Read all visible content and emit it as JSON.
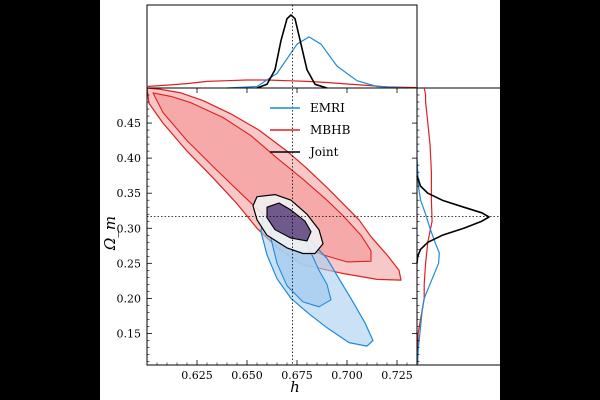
{
  "chart_data": {
    "type": "corner-contour",
    "xlabel": "h",
    "ylabel": "Ω_m",
    "xlim": [
      0.6,
      0.735
    ],
    "ylim": [
      0.105,
      0.5
    ],
    "xticks": [
      0.625,
      0.65,
      0.675,
      0.7,
      0.725
    ],
    "xtick_labels": [
      "0.625",
      "0.650",
      "0.675",
      "0.700",
      "0.725"
    ],
    "yticks": [
      0.15,
      0.2,
      0.25,
      0.3,
      0.35,
      0.4,
      0.45
    ],
    "ytick_labels": [
      "0.15",
      "0.20",
      "0.25",
      "0.30",
      "0.35",
      "0.40",
      "0.45"
    ],
    "truth": {
      "h": 0.6727,
      "Omega_m": 0.3166
    },
    "legend": {
      "position": "top-right",
      "entries": [
        {
          "name": "EMRI",
          "color": "#1f8ad6"
        },
        {
          "name": "MBHB",
          "color": "#e02020"
        },
        {
          "name": "Joint",
          "color": "#000000"
        }
      ]
    },
    "series": [
      {
        "name": "MBHB",
        "color": "#e02020",
        "fill": "#f4a3a3",
        "contours": [
          {
            "level": "2-sigma",
            "points": [
              [
                0.6,
                0.5
              ],
              [
                0.607,
                0.498
              ],
              [
                0.617,
                0.493
              ],
              [
                0.628,
                0.482
              ],
              [
                0.642,
                0.463
              ],
              [
                0.656,
                0.44
              ],
              [
                0.67,
                0.41
              ],
              [
                0.68,
                0.385
              ],
              [
                0.69,
                0.358
              ],
              [
                0.698,
                0.335
              ],
              [
                0.706,
                0.312
              ],
              [
                0.712,
                0.288
              ],
              [
                0.72,
                0.262
              ],
              [
                0.726,
                0.24
              ],
              [
                0.727,
                0.226
              ],
              [
                0.715,
                0.227
              ],
              [
                0.697,
                0.236
              ],
              [
                0.678,
                0.248
              ],
              [
                0.666,
                0.27
              ],
              [
                0.655,
                0.3
              ],
              [
                0.645,
                0.335
              ],
              [
                0.633,
                0.372
              ],
              [
                0.62,
                0.41
              ],
              [
                0.608,
                0.45
              ],
              [
                0.601,
                0.478
              ],
              [
                0.6,
                0.5
              ]
            ]
          },
          {
            "level": "1-sigma",
            "points": [
              [
                0.603,
                0.493
              ],
              [
                0.612,
                0.488
              ],
              [
                0.622,
                0.479
              ],
              [
                0.638,
                0.458
              ],
              [
                0.652,
                0.432
              ],
              [
                0.665,
                0.4
              ],
              [
                0.678,
                0.37
              ],
              [
                0.69,
                0.34
              ],
              [
                0.698,
                0.318
              ],
              [
                0.707,
                0.29
              ],
              [
                0.712,
                0.268
              ],
              [
                0.712,
                0.253
              ],
              [
                0.7,
                0.252
              ],
              [
                0.688,
                0.262
              ],
              [
                0.676,
                0.278
              ],
              [
                0.666,
                0.3
              ],
              [
                0.656,
                0.325
              ],
              [
                0.645,
                0.355
              ],
              [
                0.633,
                0.388
              ],
              [
                0.62,
                0.425
              ],
              [
                0.608,
                0.465
              ],
              [
                0.603,
                0.493
              ]
            ]
          }
        ],
        "marginal_x": [
          [
            0.6,
            0.02
          ],
          [
            0.61,
            0.04
          ],
          [
            0.62,
            0.06
          ],
          [
            0.63,
            0.09
          ],
          [
            0.64,
            0.1
          ],
          [
            0.65,
            0.11
          ],
          [
            0.66,
            0.11
          ],
          [
            0.67,
            0.1
          ],
          [
            0.68,
            0.09
          ],
          [
            0.69,
            0.075
          ],
          [
            0.7,
            0.055
          ],
          [
            0.71,
            0.035
          ],
          [
            0.72,
            0.015
          ],
          [
            0.735,
            0.005
          ]
        ],
        "marginal_y": [
          [
            0.105,
            0.008
          ],
          [
            0.15,
            0.015
          ],
          [
            0.2,
            0.1
          ],
          [
            0.22,
            0.1
          ],
          [
            0.25,
            0.12
          ],
          [
            0.28,
            0.15
          ],
          [
            0.31,
            0.21
          ],
          [
            0.34,
            0.2
          ],
          [
            0.38,
            0.2
          ],
          [
            0.42,
            0.18
          ],
          [
            0.46,
            0.14
          ],
          [
            0.48,
            0.12
          ],
          [
            0.49,
            0.12
          ],
          [
            0.5,
            0.1
          ]
        ]
      },
      {
        "name": "EMRI",
        "color": "#1f8ad6",
        "fill": "#a9cef0",
        "contours": [
          {
            "level": "2-sigma",
            "points": [
              [
                0.662,
                0.322
              ],
              [
                0.668,
                0.315
              ],
              [
                0.677,
                0.298
              ],
              [
                0.684,
                0.275
              ],
              [
                0.69,
                0.257
              ],
              [
                0.696,
                0.228
              ],
              [
                0.703,
                0.195
              ],
              [
                0.709,
                0.165
              ],
              [
                0.713,
                0.14
              ],
              [
                0.71,
                0.132
              ],
              [
                0.701,
                0.137
              ],
              [
                0.69,
                0.158
              ],
              [
                0.681,
                0.178
              ],
              [
                0.672,
                0.2
              ],
              [
                0.665,
                0.228
              ],
              [
                0.66,
                0.262
              ],
              [
                0.657,
                0.295
              ],
              [
                0.658,
                0.318
              ],
              [
                0.662,
                0.322
              ]
            ]
          },
          {
            "level": "1-sigma",
            "points": [
              [
                0.666,
                0.32
              ],
              [
                0.672,
                0.308
              ],
              [
                0.678,
                0.288
              ],
              [
                0.682,
                0.265
              ],
              [
                0.686,
                0.24
              ],
              [
                0.69,
                0.22
              ],
              [
                0.692,
                0.198
              ],
              [
                0.686,
                0.188
              ],
              [
                0.678,
                0.195
              ],
              [
                0.67,
                0.218
              ],
              [
                0.665,
                0.25
              ],
              [
                0.662,
                0.285
              ],
              [
                0.662,
                0.31
              ],
              [
                0.666,
                0.32
              ]
            ]
          }
        ],
        "marginal_x": [
          [
            0.64,
            0.0
          ],
          [
            0.655,
            0.02
          ],
          [
            0.665,
            0.2
          ],
          [
            0.675,
            0.6
          ],
          [
            0.681,
            0.7
          ],
          [
            0.687,
            0.6
          ],
          [
            0.695,
            0.3
          ],
          [
            0.705,
            0.1
          ],
          [
            0.715,
            0.02
          ],
          [
            0.73,
            0.0
          ]
        ],
        "marginal_y": [
          [
            0.105,
            0.005
          ],
          [
            0.13,
            0.02
          ],
          [
            0.16,
            0.05
          ],
          [
            0.18,
            0.07
          ],
          [
            0.2,
            0.1
          ],
          [
            0.23,
            0.22
          ],
          [
            0.25,
            0.3
          ],
          [
            0.265,
            0.31
          ],
          [
            0.28,
            0.25
          ],
          [
            0.3,
            0.18
          ],
          [
            0.32,
            0.12
          ],
          [
            0.34,
            0.05
          ],
          [
            0.36,
            0.02
          ],
          [
            0.4,
            0.0
          ]
        ]
      },
      {
        "name": "Joint",
        "color": "#000000",
        "fill": "#f2f2f2",
        "inner_fill": "#5b3f7a",
        "contours": [
          {
            "level": "2-sigma",
            "points": [
              [
                0.664,
                0.348
              ],
              [
                0.672,
                0.34
              ],
              [
                0.68,
                0.32
              ],
              [
                0.686,
                0.298
              ],
              [
                0.688,
                0.278
              ],
              [
                0.684,
                0.264
              ],
              [
                0.678,
                0.264
              ],
              [
                0.67,
                0.272
              ],
              [
                0.66,
                0.29
              ],
              [
                0.655,
                0.312
              ],
              [
                0.653,
                0.332
              ],
              [
                0.655,
                0.345
              ],
              [
                0.664,
                0.348
              ]
            ]
          },
          {
            "level": "1-sigma",
            "points": [
              [
                0.666,
                0.336
              ],
              [
                0.672,
                0.326
              ],
              [
                0.679,
                0.31
              ],
              [
                0.682,
                0.295
              ],
              [
                0.68,
                0.282
              ],
              [
                0.672,
                0.286
              ],
              [
                0.664,
                0.298
              ],
              [
                0.66,
                0.315
              ],
              [
                0.66,
                0.33
              ],
              [
                0.666,
                0.336
              ]
            ]
          }
        ],
        "marginal_x": [
          [
            0.655,
            0.0
          ],
          [
            0.66,
            0.05
          ],
          [
            0.664,
            0.25
          ],
          [
            0.667,
            0.65
          ],
          [
            0.67,
            0.95
          ],
          [
            0.672,
            1.0
          ],
          [
            0.674,
            0.95
          ],
          [
            0.677,
            0.6
          ],
          [
            0.68,
            0.25
          ],
          [
            0.684,
            0.05
          ],
          [
            0.69,
            0.0
          ]
        ],
        "marginal_y": [
          [
            0.25,
            0.0
          ],
          [
            0.26,
            0.01
          ],
          [
            0.27,
            0.05
          ],
          [
            0.28,
            0.15
          ],
          [
            0.29,
            0.35
          ],
          [
            0.3,
            0.65
          ],
          [
            0.31,
            0.9
          ],
          [
            0.316,
            1.0
          ],
          [
            0.322,
            0.9
          ],
          [
            0.33,
            0.65
          ],
          [
            0.34,
            0.35
          ],
          [
            0.35,
            0.15
          ],
          [
            0.36,
            0.05
          ],
          [
            0.375,
            0.0
          ]
        ]
      }
    ]
  }
}
